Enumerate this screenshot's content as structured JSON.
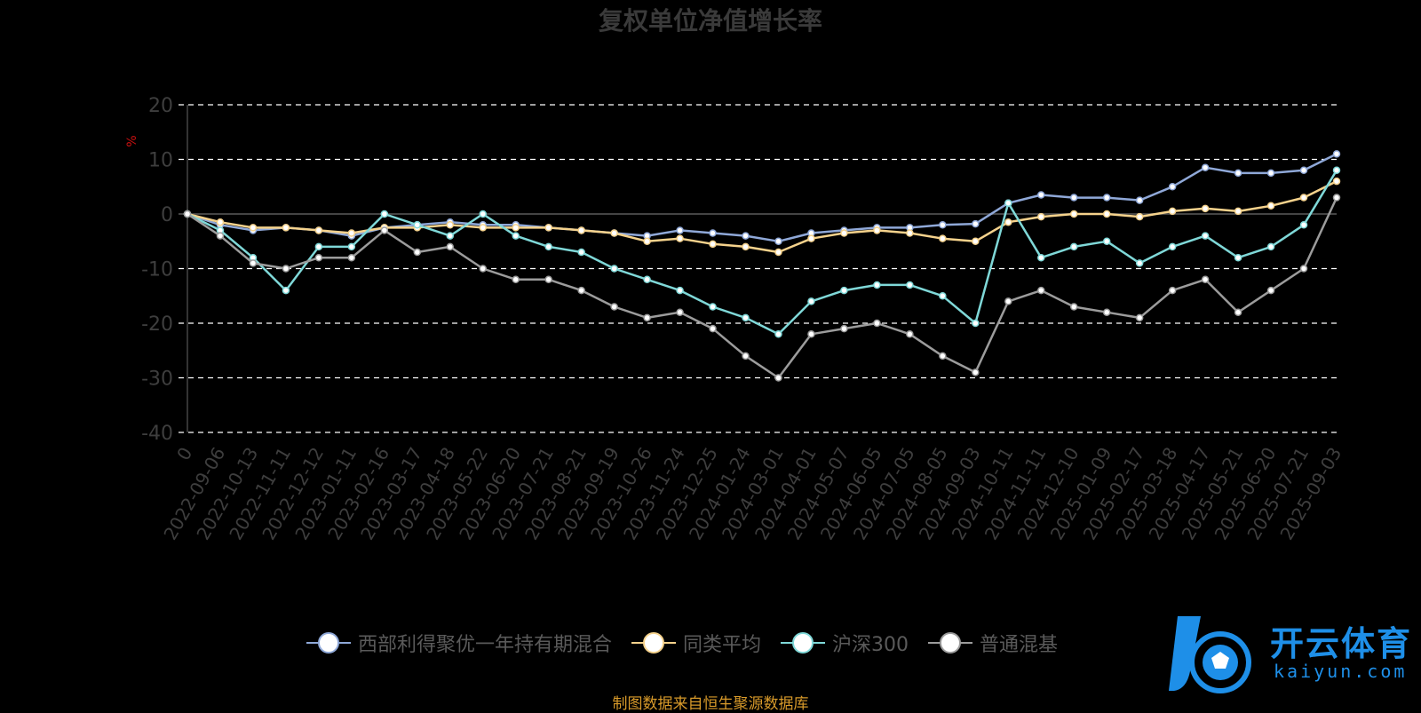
{
  "chart_data": {
    "type": "line",
    "title": "复权单位净值增长率",
    "ylabel": "%",
    "ylim": [
      -40,
      20
    ],
    "yticks": [
      20,
      10,
      0,
      -10,
      -20,
      -30,
      -40
    ],
    "grid": true,
    "legend_position": "bottom",
    "x_ticks": [
      "0",
      "2022-09-06",
      "2022-10-13",
      "2022-11-11",
      "2022-12-12",
      "2023-01-11",
      "2023-02-16",
      "2023-03-17",
      "2023-04-18",
      "2023-05-22",
      "2023-06-20",
      "2023-07-21",
      "2023-08-21",
      "2023-09-19",
      "2023-10-26",
      "2023-11-24",
      "2023-12-25",
      "2024-01-24",
      "2024-03-01",
      "2024-04-01",
      "2024-05-07",
      "2024-06-05",
      "2024-07-05",
      "2024-08-05",
      "2024-09-03",
      "2024-10-11",
      "2024-11-11",
      "2024-12-10",
      "2025-01-09",
      "2025-02-17",
      "2025-03-18",
      "2025-04-17",
      "2025-05-21",
      "2025-06-20",
      "2025-07-21",
      "2025-09-03"
    ],
    "series": [
      {
        "name": "西部利得聚优一年持有期混合",
        "color": "#8fa8d8",
        "values": [
          0,
          -2,
          -3,
          -2.5,
          -3,
          -4,
          -2.5,
          -2,
          -1.5,
          -2,
          -2,
          -2.5,
          -3,
          -3.5,
          -4,
          -3,
          -3.5,
          -4,
          -5,
          -3.5,
          -3,
          -2.5,
          -2.5,
          -2,
          -1.8,
          2,
          3.5,
          3,
          3,
          2.5,
          5,
          8.5,
          7.5,
          7.5,
          8,
          11
        ]
      },
      {
        "name": "同类平均",
        "color": "#f5d28c",
        "values": [
          0,
          -1.5,
          -2.5,
          -2.5,
          -3,
          -3.5,
          -2.5,
          -2.5,
          -2,
          -2.5,
          -2.5,
          -2.5,
          -3,
          -3.5,
          -5,
          -4.5,
          -5.5,
          -6,
          -7,
          -4.5,
          -3.5,
          -3,
          -3.5,
          -4.5,
          -5,
          -1.5,
          -0.5,
          0,
          0,
          -0.5,
          0.5,
          1,
          0.5,
          1.5,
          3,
          6
        ]
      },
      {
        "name": "沪深300",
        "color": "#7fd8d8",
        "values": [
          0,
          -3,
          -8,
          -14,
          -6,
          -6,
          0,
          -2,
          -4,
          0,
          -4,
          -6,
          -7,
          -10,
          -12,
          -14,
          -17,
          -19,
          -22,
          -16,
          -14,
          -13,
          -13,
          -15,
          -20,
          2,
          -8,
          -6,
          -5,
          -9,
          -6,
          -4,
          -8,
          -6,
          -2,
          8
        ]
      },
      {
        "name": "普通混基",
        "color": "#9c9c9c",
        "values": [
          0,
          -4,
          -9,
          -10,
          -8,
          -8,
          -3,
          -7,
          -6,
          -10,
          -12,
          -12,
          -14,
          -17,
          -19,
          -18,
          -21,
          -26,
          -30,
          -22,
          -21,
          -20,
          -22,
          -26,
          -29,
          -16,
          -14,
          -17,
          -18,
          -19,
          -14,
          -12,
          -18,
          -14,
          -10,
          3
        ]
      }
    ]
  },
  "source_text": "制图数据来自恒生聚源数据库",
  "logo": {
    "name": "开云体育",
    "sub": "kaiyun.com"
  }
}
